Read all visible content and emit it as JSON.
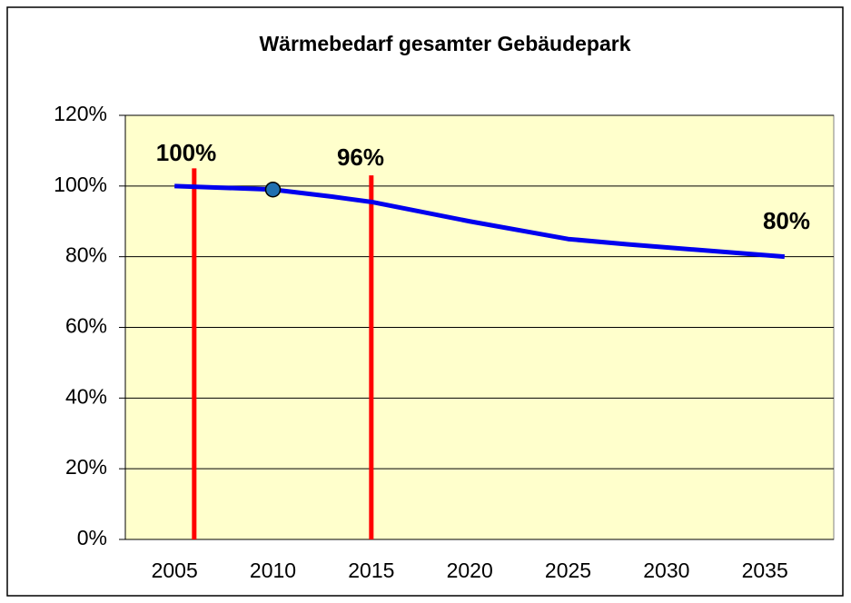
{
  "chart_data": {
    "type": "line",
    "title": "Wärmebedarf gesamter Gebäudepark",
    "x": [
      2005,
      2010,
      2013,
      2015,
      2020,
      2025,
      2028,
      2036
    ],
    "series": [
      {
        "color": "#0000ee",
        "values": [
          100,
          99,
          97,
          95.5,
          90,
          85,
          83.5,
          80
        ]
      }
    ],
    "highlight": {
      "x": 2010,
      "y": 99,
      "color": "#1f6fb0"
    },
    "vlines": [
      {
        "x": 2006,
        "top": 105,
        "color": "#ff0000"
      },
      {
        "x": 2015,
        "top": 103,
        "color": "#ff0000"
      }
    ],
    "annotations": [
      "100%",
      "96%",
      "80%"
    ],
    "xlim": [
      2002.5,
      2038.5
    ],
    "xticks": [
      2005,
      2010,
      2015,
      2020,
      2025,
      2030,
      2035
    ],
    "ylim": [
      0,
      120
    ],
    "yticks": [
      {
        "value": 0,
        "label": "0%"
      },
      {
        "value": 20,
        "label": "20%"
      },
      {
        "value": 40,
        "label": "40%"
      },
      {
        "value": 60,
        "label": "60%"
      },
      {
        "value": 80,
        "label": "80%"
      },
      {
        "value": 100,
        "label": "100%"
      },
      {
        "value": 120,
        "label": "120%"
      }
    ],
    "grid": true,
    "background": "#ffffcc"
  }
}
